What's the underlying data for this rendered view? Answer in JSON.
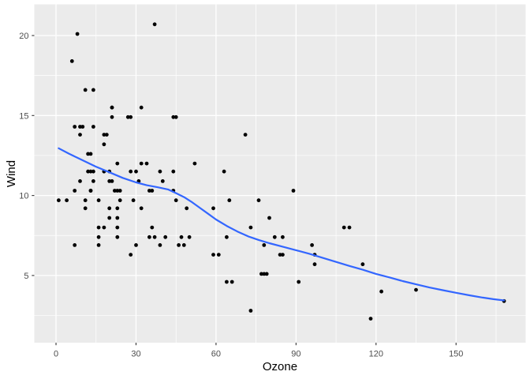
{
  "figure": {
    "background_color": "#FFFFFF"
  },
  "chart_data": {
    "type": "scatter",
    "title": "",
    "xlabel": "Ozone",
    "ylabel": "Wind",
    "legend_position": "none",
    "grid": true,
    "xlim": [
      -8.14,
      176.1
    ],
    "ylim": [
      0.8,
      21.95
    ],
    "x_ticks": [
      0,
      30,
      60,
      90,
      120,
      150
    ],
    "x_minor_ticks": [
      15,
      45,
      75,
      105,
      135,
      165
    ],
    "y_ticks": [
      5,
      10,
      15,
      20
    ],
    "y_minor_ticks": [
      2.5,
      7.5,
      12.5,
      17.5
    ],
    "panel_background_color": "#EBEBEB",
    "grid_color": "#FFFFFF",
    "point_color": "#000000",
    "smooth_line_color": "#3366FF",
    "tick_mark_color": "#333333",
    "tick_label_color": "#4D4D4D",
    "axis_title_color": "#000000",
    "series": [
      {
        "name": "points",
        "geom": "point",
        "xy": [
          [
            41,
            7.4
          ],
          [
            36,
            8
          ],
          [
            12,
            12.6
          ],
          [
            18,
            11.5
          ],
          [
            28,
            14.9
          ],
          [
            23,
            8.6
          ],
          [
            19,
            13.8
          ],
          [
            8,
            20.1
          ],
          [
            7,
            6.9
          ],
          [
            16,
            9.7
          ],
          [
            11,
            9.2
          ],
          [
            14,
            10.9
          ],
          [
            18,
            13.2
          ],
          [
            14,
            11.5
          ],
          [
            34,
            12
          ],
          [
            6,
            18.4
          ],
          [
            30,
            11.5
          ],
          [
            11,
            9.7
          ],
          [
            1,
            9.7
          ],
          [
            11,
            16.6
          ],
          [
            4,
            9.7
          ],
          [
            32,
            12
          ],
          [
            23,
            12
          ],
          [
            45,
            14.9
          ],
          [
            115,
            5.7
          ],
          [
            37,
            7.4
          ],
          [
            29,
            9.7
          ],
          [
            71,
            13.8
          ],
          [
            39,
            11.5
          ],
          [
            23,
            8
          ],
          [
            21,
            14.9
          ],
          [
            37,
            20.7
          ],
          [
            20,
            9.2
          ],
          [
            12,
            11.5
          ],
          [
            13,
            10.3
          ],
          [
            135,
            4.1
          ],
          [
            49,
            9.2
          ],
          [
            32,
            9.2
          ],
          [
            64,
            4.6
          ],
          [
            40,
            10.9
          ],
          [
            77,
            5.1
          ],
          [
            97,
            6.3
          ],
          [
            97,
            5.7
          ],
          [
            85,
            7.4
          ],
          [
            10,
            14.3
          ],
          [
            27,
            14.9
          ],
          [
            7,
            14.3
          ],
          [
            48,
            6.9
          ],
          [
            35,
            10.3
          ],
          [
            61,
            6.3
          ],
          [
            79,
            5.1
          ],
          [
            63,
            11.5
          ],
          [
            16,
            6.9
          ],
          [
            80,
            8.6
          ],
          [
            108,
            8
          ],
          [
            20,
            8.6
          ],
          [
            52,
            12
          ],
          [
            82,
            7.4
          ],
          [
            50,
            7.4
          ],
          [
            64,
            7.4
          ],
          [
            59,
            9.2
          ],
          [
            39,
            6.9
          ],
          [
            9,
            13.8
          ],
          [
            16,
            7.4
          ],
          [
            78,
            6.9
          ],
          [
            35,
            7.4
          ],
          [
            66,
            4.6
          ],
          [
            122,
            4
          ],
          [
            89,
            10.3
          ],
          [
            110,
            8
          ],
          [
            44,
            11.5
          ],
          [
            28,
            11.5
          ],
          [
            65,
            9.7
          ],
          [
            22,
            10.3
          ],
          [
            59,
            6.3
          ],
          [
            23,
            7.4
          ],
          [
            31,
            10.9
          ],
          [
            44,
            10.3
          ],
          [
            21,
            15.5
          ],
          [
            9,
            14.3
          ],
          [
            45,
            9.7
          ],
          [
            168,
            3.4
          ],
          [
            73,
            8
          ],
          [
            76,
            9.7
          ],
          [
            118,
            2.3
          ],
          [
            84,
            6.3
          ],
          [
            85,
            6.3
          ],
          [
            96,
            6.9
          ],
          [
            78,
            5.1
          ],
          [
            73,
            2.8
          ],
          [
            91,
            4.6
          ],
          [
            47,
            7.4
          ],
          [
            32,
            15.5
          ],
          [
            20,
            10.9
          ],
          [
            23,
            10.3
          ],
          [
            21,
            10.9
          ],
          [
            24,
            9.7
          ],
          [
            44,
            14.9
          ],
          [
            21,
            15.5
          ],
          [
            28,
            6.3
          ],
          [
            9,
            10.9
          ],
          [
            13,
            11.5
          ],
          [
            46,
            6.9
          ],
          [
            18,
            13.8
          ],
          [
            13,
            10.3
          ],
          [
            24,
            10.3
          ],
          [
            16,
            8
          ],
          [
            13,
            12.6
          ],
          [
            23,
            9.2
          ],
          [
            36,
            10.3
          ],
          [
            7,
            10.3
          ],
          [
            14,
            16.6
          ],
          [
            30,
            6.9
          ],
          [
            14,
            14.3
          ],
          [
            18,
            8
          ],
          [
            20,
            11.5
          ]
        ]
      },
      {
        "name": "loess-smooth",
        "geom": "line",
        "xy": [
          [
            1,
            12.95
          ],
          [
            5,
            12.6
          ],
          [
            10,
            12.2
          ],
          [
            15,
            11.8
          ],
          [
            20,
            11.45
          ],
          [
            25,
            11.1
          ],
          [
            30,
            10.82
          ],
          [
            34,
            10.64
          ],
          [
            38,
            10.52
          ],
          [
            42,
            10.38
          ],
          [
            45,
            10.15
          ],
          [
            48,
            9.9
          ],
          [
            51,
            9.58
          ],
          [
            54,
            9.22
          ],
          [
            57,
            8.86
          ],
          [
            60,
            8.5
          ],
          [
            64,
            8.1
          ],
          [
            68,
            7.75
          ],
          [
            72,
            7.45
          ],
          [
            76,
            7.22
          ],
          [
            80,
            7.02
          ],
          [
            85,
            6.8
          ],
          [
            90,
            6.58
          ],
          [
            95,
            6.36
          ],
          [
            100,
            6.1
          ],
          [
            105,
            5.85
          ],
          [
            110,
            5.6
          ],
          [
            115,
            5.36
          ],
          [
            120,
            5.1
          ],
          [
            125,
            4.88
          ],
          [
            130,
            4.65
          ],
          [
            135,
            4.45
          ],
          [
            140,
            4.25
          ],
          [
            145,
            4.08
          ],
          [
            150,
            3.92
          ],
          [
            155,
            3.76
          ],
          [
            160,
            3.62
          ],
          [
            164,
            3.52
          ],
          [
            168,
            3.44
          ]
        ]
      }
    ]
  }
}
